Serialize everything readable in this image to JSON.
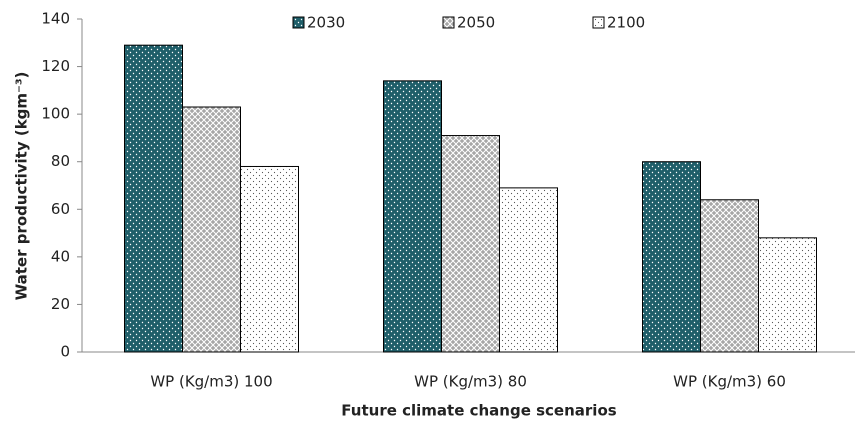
{
  "chart_data": {
    "type": "bar",
    "xlabel": "Future climate change scenarios",
    "ylabel": "Water productivity (kgm⁻³)",
    "categories": [
      "WP (Kg/m3) 100",
      "WP (Kg/m3) 80",
      "WP (Kg/m3) 60"
    ],
    "series": [
      {
        "name": "2030",
        "color": "#1f5e69",
        "pattern": "dots-light",
        "values": [
          129,
          114,
          80
        ]
      },
      {
        "name": "2050",
        "color": "#a6a6a6",
        "pattern": "crosshatch",
        "values": [
          103,
          91,
          64
        ]
      },
      {
        "name": "2100",
        "color": "#ffffff",
        "pattern": "dots-dark",
        "values": [
          78,
          69,
          48
        ]
      }
    ],
    "ylim": [
      0,
      140
    ],
    "yticks": [
      0,
      20,
      40,
      60,
      80,
      100,
      120,
      140
    ],
    "legend": "top"
  }
}
